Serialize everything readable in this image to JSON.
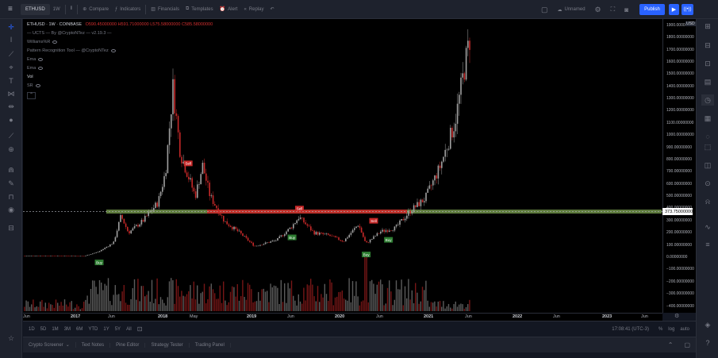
{
  "toolbar": {
    "symbol": "ETHUSD",
    "resolution": "1W",
    "compare": "Compare",
    "indicators": "Indicators",
    "financials": "Financials",
    "templates": "Templates",
    "alert": "Alert",
    "replay": "Replay",
    "layout_name": "Unnamed",
    "publish": "Publish"
  },
  "legend": {
    "title": "ETHUSD · 1W · COINBASE",
    "ohlc": "O590.45000000 H591.71000000 L575.58000000 C585.58000000",
    "lines": [
      "— UCTS — By @CryptoNTez — v2.19.3 —",
      "Williams%R",
      "Pattern Recognition Tool — @CryptoNTez",
      "Ema",
      "Ema",
      "Vol",
      "SR"
    ]
  },
  "price_scale": {
    "labels": [
      "1900.00000000",
      "1800.00000000",
      "1700.00000000",
      "1600.00000000",
      "1500.00000000",
      "1400.00000000",
      "1300.00000000",
      "1200.00000000",
      "1100.00000000",
      "1000.00000000",
      "900.00000000",
      "800.00000000",
      "700.00000000",
      "600.00000000",
      "500.00000000",
      "400.00000000",
      "300.00000000",
      "200.00000000",
      "100.00000000",
      "0.00000000",
      "−100.00000000",
      "−200.00000000",
      "−300.00000000",
      "−400.00000000"
    ],
    "currency": "USD",
    "current_price": "373.75000000"
  },
  "time_axis": {
    "labels": [
      {
        "t": "Jun",
        "year": false
      },
      {
        "t": "2017",
        "year": true
      },
      {
        "t": "Jun",
        "year": false
      },
      {
        "t": "2018",
        "year": true
      },
      {
        "t": "May",
        "year": false
      },
      {
        "t": "2019",
        "year": true
      },
      {
        "t": "Jun",
        "year": false
      },
      {
        "t": "2020",
        "year": true
      },
      {
        "t": "Jun",
        "year": false
      },
      {
        "t": "2021",
        "year": true
      },
      {
        "t": "Jun",
        "year": false
      },
      {
        "t": "2022",
        "year": true
      },
      {
        "t": "Jun",
        "year": false
      },
      {
        "t": "2023",
        "year": true
      },
      {
        "t": "Jun",
        "year": false
      }
    ]
  },
  "ranges": [
    "1D",
    "5D",
    "1M",
    "3M",
    "6M",
    "YTD",
    "1Y",
    "5Y",
    "All"
  ],
  "status": {
    "time": "17:08:41 (UTC-3)",
    "percent": "%",
    "log": "log",
    "auto": "auto"
  },
  "bottom_tabs": [
    "Crypto Screener",
    "Text Notes",
    "Pine Editor",
    "Strategy Tester",
    "Trading Panel"
  ],
  "signals": [
    "Buy",
    "Sell",
    "Sell",
    "Buy",
    "Buy",
    "Sell",
    "Buy"
  ],
  "colors": {
    "up": "#a0a0a0",
    "down": "#c62828",
    "support": "#c62828",
    "resistance": "#9ccc65",
    "buy": "#2e7d32",
    "sell": "#c62828",
    "accent": "#2962ff"
  },
  "chart_data": {
    "type": "candlestick",
    "symbol": "ETHUSD",
    "interval": "1W",
    "exchange": "COINBASE",
    "last": {
      "open": 590.45,
      "high": 591.71,
      "low": 575.58,
      "close": 585.58
    },
    "ylim": [
      -450,
      1950
    ],
    "price_path": [
      [
        "2016-05",
        10
      ],
      [
        "2016-09",
        12
      ],
      [
        "2017-01",
        9
      ],
      [
        "2017-03",
        45
      ],
      [
        "2017-05",
        120
      ],
      [
        "2017-06",
        340
      ],
      [
        "2017-07",
        200
      ],
      [
        "2017-09",
        300
      ],
      [
        "2017-11",
        450
      ],
      [
        "2017-12",
        700
      ],
      [
        "2018-01",
        1390
      ],
      [
        "2018-02",
        850
      ],
      [
        "2018-04",
        500
      ],
      [
        "2018-05",
        750
      ],
      [
        "2018-06",
        500
      ],
      [
        "2018-08",
        290
      ],
      [
        "2018-10",
        200
      ],
      [
        "2018-12",
        90
      ],
      [
        "2019-03",
        140
      ],
      [
        "2019-05",
        250
      ],
      [
        "2019-06",
        330
      ],
      [
        "2019-08",
        200
      ],
      [
        "2019-10",
        180
      ],
      [
        "2019-12",
        130
      ],
      [
        "2020-02",
        270
      ],
      [
        "2020-03",
        110
      ],
      [
        "2020-05",
        210
      ],
      [
        "2020-07",
        240
      ],
      [
        "2020-09",
        380
      ],
      [
        "2020-11",
        480
      ],
      [
        "2021-01",
        740
      ],
      [
        "2021-03",
        1100
      ],
      [
        "2021-05",
        1790
      ]
    ],
    "level_lines": [
      373.75
    ],
    "signals": [
      {
        "label": "Buy",
        "date": "2017-03",
        "price": 45
      },
      {
        "label": "Sell",
        "date": "2018-03",
        "price": 700
      },
      {
        "label": "Sell",
        "date": "2019-06",
        "price": 330
      },
      {
        "label": "Buy",
        "date": "2019-05",
        "price": 250
      },
      {
        "label": "Buy",
        "date": "2020-03",
        "price": 110
      },
      {
        "label": "Sell",
        "date": "2020-04",
        "price": 230
      },
      {
        "label": "Buy",
        "date": "2020-06",
        "price": 230
      }
    ]
  }
}
